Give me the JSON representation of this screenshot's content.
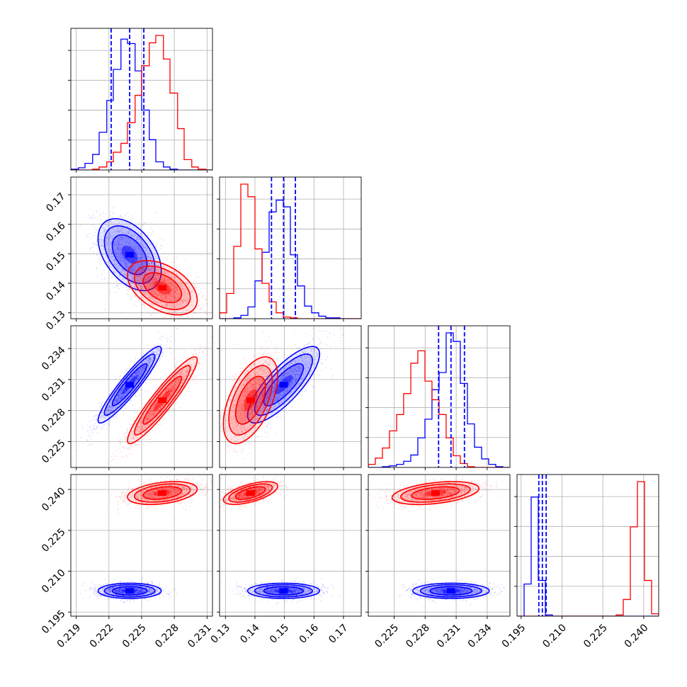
{
  "chart_data": {
    "type": "corner",
    "title": "",
    "grid": true,
    "series": [
      {
        "name": "",
        "color": "#0000ff"
      },
      {
        "name": "",
        "color": "#ff0000"
      }
    ],
    "params": [
      {
        "axis_range": [
          0.2185,
          0.2315
        ],
        "ticks": [
          0.219,
          0.222,
          0.225,
          0.228,
          0.231
        ],
        "tick_labels": [
          "0.219",
          "0.222",
          "0.225",
          "0.228",
          "0.231"
        ]
      },
      {
        "axis_range": [
          0.128,
          0.176
        ],
        "ticks": [
          0.13,
          0.14,
          0.15,
          0.16,
          0.17
        ],
        "tick_labels": [
          "0.13",
          "0.14",
          "0.15",
          "0.16",
          "0.17"
        ]
      },
      {
        "axis_range": [
          0.2225,
          0.2362
        ],
        "ticks": [
          0.225,
          0.228,
          0.231,
          0.234
        ],
        "tick_labels": [
          "0.225",
          "0.228",
          "0.231",
          "0.234"
        ]
      },
      {
        "axis_range": [
          0.1935,
          0.2455
        ],
        "ticks": [
          0.195,
          0.21,
          0.225,
          0.24
        ],
        "tick_labels": [
          "0.195",
          "0.210",
          "0.225",
          "0.240"
        ]
      }
    ],
    "histograms": [
      {
        "param": 0,
        "series": [
          {
            "name": "",
            "bins": [
              0.2185,
              0.2192,
              0.2198,
              0.2205,
              0.2211,
              0.2218,
              0.2224,
              0.2231,
              0.2237,
              0.2244,
              0.225,
              0.2257,
              0.2263,
              0.227,
              0.2276,
              0.2283,
              0.2289,
              0.2296,
              0.2302,
              0.2309,
              0.2315
            ],
            "counts": [
              1,
              3,
              9,
              21,
              51,
              94,
              136,
              177,
              171,
              134,
              81,
              41,
              11,
              4,
              1,
              0,
              0,
              0,
              0,
              0
            ]
          },
          {
            "name": "",
            "bins": [
              0.2185,
              0.2192,
              0.2198,
              0.2205,
              0.2211,
              0.2218,
              0.2224,
              0.2231,
              0.2237,
              0.2244,
              0.225,
              0.2257,
              0.2263,
              0.227,
              0.2276,
              0.2283,
              0.2289,
              0.2296,
              0.2302,
              0.2309,
              0.2315
            ],
            "counts": [
              0,
              0,
              0,
              1,
              4,
              11,
              24,
              36,
              64,
              101,
              141,
              172,
              182,
              150,
              104,
              56,
              14,
              4,
              1,
              0
            ]
          }
        ],
        "quantiles": [
          0.2222,
          0.2239,
          0.2252
        ]
      },
      {
        "param": 1,
        "series": [
          {
            "name": "",
            "bins": [
              0.128,
              0.1304,
              0.1328,
              0.1352,
              0.1376,
              0.14,
              0.1424,
              0.1448,
              0.1472,
              0.1496,
              0.152,
              0.1544,
              0.1568,
              0.1592,
              0.1616,
              0.164,
              0.1664,
              0.1688,
              0.1712,
              0.1736,
              0.176
            ],
            "counts": [
              0,
              0,
              1,
              4,
              14,
              45,
              79,
              127,
              141,
              133,
              76,
              39,
              15,
              7,
              3,
              1,
              1,
              0,
              0,
              0
            ]
          },
          {
            "name": "",
            "bins": [
              0.128,
              0.1304,
              0.1328,
              0.1352,
              0.1376,
              0.14,
              0.1424,
              0.1448,
              0.1472,
              0.1496,
              0.152,
              0.1544,
              0.1568,
              0.1592,
              0.1616,
              0.164,
              0.1664,
              0.1688,
              0.1712,
              0.1736,
              0.176
            ],
            "counts": [
              7,
              30,
              86,
              160,
              145,
              83,
              42,
              20,
              7,
              2,
              1,
              0,
              0,
              0,
              0,
              0,
              0,
              0,
              0,
              0
            ]
          }
        ],
        "quantiles": [
          0.1456,
          0.1497,
          0.1537
        ]
      },
      {
        "param": 2,
        "series": [
          {
            "name": "",
            "bins": [
              0.2225,
              0.22318,
              0.22387,
              0.22455,
              0.22524,
              0.22592,
              0.22661,
              0.22729,
              0.22798,
              0.22866,
              0.22935,
              0.23003,
              0.23072,
              0.2314,
              0.23209,
              0.23277,
              0.23346,
              0.23414,
              0.23483,
              0.23551,
              0.2362
            ],
            "counts": [
              0,
              0,
              1,
              2,
              4,
              8,
              16,
              38,
              62,
              100,
              122,
              173,
              162,
              108,
              56,
              26,
              11,
              4,
              1,
              0
            ]
          },
          {
            "name": "",
            "bins": [
              0.2225,
              0.22318,
              0.22387,
              0.22455,
              0.22524,
              0.22592,
              0.22661,
              0.22729,
              0.22798,
              0.22866,
              0.22935,
              0.23003,
              0.23072,
              0.2314,
              0.23209,
              0.23277,
              0.23346,
              0.23414,
              0.23483,
              0.23551,
              0.2362
            ],
            "counts": [
              4,
              12,
              25,
              47,
              68,
              95,
              134,
              150,
              111,
              87,
              68,
              38,
              15,
              5,
              1,
              0,
              0,
              0,
              0,
              0
            ]
          }
        ],
        "quantiles": [
          0.2293,
          0.2305,
          0.2318
        ]
      },
      {
        "param": 3,
        "series": [
          {
            "name": "",
            "bins": [
              0.1935,
              0.1961,
              0.1987,
              0.2013,
              0.2039,
              0.2065,
              0.2091,
              0.2117,
              0.2143,
              0.2169,
              0.2195,
              0.2221,
              0.2247,
              0.2273,
              0.2299,
              0.2325,
              0.2351,
              0.2377,
              0.2403,
              0.2429,
              0.2455
            ],
            "counts": [
              0,
              27,
              100,
              30,
              1,
              0,
              0,
              0,
              0,
              0,
              0,
              0,
              0,
              0,
              0,
              0,
              0,
              0,
              0,
              0
            ]
          },
          {
            "name": "",
            "bins": [
              0.1935,
              0.1961,
              0.1987,
              0.2013,
              0.2039,
              0.2065,
              0.2091,
              0.2117,
              0.2143,
              0.2169,
              0.2195,
              0.2221,
              0.2247,
              0.2273,
              0.2299,
              0.2325,
              0.2351,
              0.2377,
              0.2403,
              0.2429,
              0.2455
            ],
            "counts": [
              0,
              0,
              0,
              0,
              0,
              0,
              0,
              0,
              0,
              0,
              0,
              0,
              0,
              0,
              1,
              14,
              75,
              113,
              30,
              2
            ]
          }
        ],
        "quantiles": [
          0.2015,
          0.2028,
          0.2042
        ]
      }
    ],
    "scatter_panels": [
      {
        "x_param": 0,
        "y_param": 1,
        "clouds": [
          {
            "series": "",
            "mean": [
              0.2239,
              0.1497
            ],
            "sd": [
              0.00145,
              0.0061
            ],
            "corr": -0.45
          },
          {
            "series": "",
            "mean": [
              0.2269,
              0.1385
            ],
            "sd": [
              0.0016,
              0.0046
            ],
            "corr": -0.45
          }
        ]
      },
      {
        "x_param": 0,
        "y_param": 2,
        "clouds": [
          {
            "series": "",
            "mean": [
              0.2239,
              0.2305
            ],
            "sd": [
              0.00145,
              0.00185
            ],
            "corr": 0.93
          },
          {
            "series": "",
            "mean": [
              0.2269,
              0.229
            ],
            "sd": [
              0.0016,
              0.0021
            ],
            "corr": 0.93
          }
        ]
      },
      {
        "x_param": 1,
        "y_param": 2,
        "clouds": [
          {
            "series": "",
            "mean": [
              0.1497,
              0.2305
            ],
            "sd": [
              0.0061,
              0.00185
            ],
            "corr": 0.8
          },
          {
            "series": "",
            "mean": [
              0.1385,
              0.229
            ],
            "sd": [
              0.0046,
              0.0021
            ],
            "corr": 0.55
          }
        ]
      },
      {
        "x_param": 0,
        "y_param": 3,
        "clouds": [
          {
            "series": "",
            "mean": [
              0.2239,
              0.2028
            ],
            "sd": [
              0.00145,
              0.0014
            ],
            "corr": 0.0
          },
          {
            "series": "",
            "mean": [
              0.2269,
              0.2387
            ],
            "sd": [
              0.0016,
              0.0021
            ],
            "corr": 0.35
          }
        ]
      },
      {
        "x_param": 1,
        "y_param": 3,
        "clouds": [
          {
            "series": "",
            "mean": [
              0.1497,
              0.2028
            ],
            "sd": [
              0.0061,
              0.0014
            ],
            "corr": 0.0
          },
          {
            "series": "",
            "mean": [
              0.1385,
              0.2387
            ],
            "sd": [
              0.0046,
              0.0021
            ],
            "corr": 0.6
          }
        ]
      },
      {
        "x_param": 2,
        "y_param": 3,
        "clouds": [
          {
            "series": "",
            "mean": [
              0.2305,
              0.2028
            ],
            "sd": [
              0.00185,
              0.0014
            ],
            "corr": 0.0
          },
          {
            "series": "",
            "mean": [
              0.229,
              0.2387
            ],
            "sd": [
              0.0021,
              0.0021
            ],
            "corr": 0.4
          }
        ]
      }
    ]
  }
}
